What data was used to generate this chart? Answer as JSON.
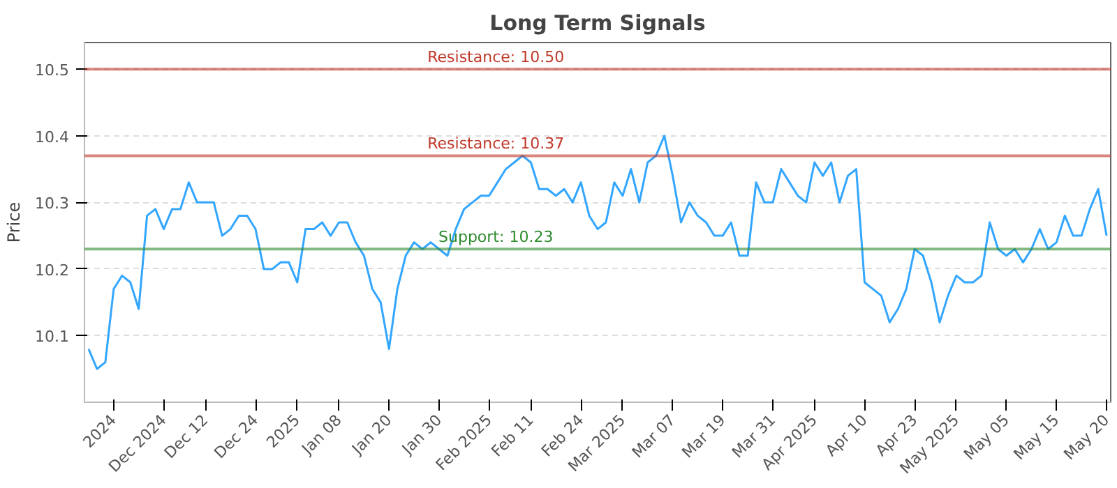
{
  "chart_data": {
    "type": "line",
    "title": "Long Term Signals",
    "ylabel": "Price",
    "categories": [
      null,
      null,
      null,
      "2024",
      null,
      null,
      null,
      null,
      null,
      "Dec 2024",
      null,
      null,
      null,
      null,
      "Dec 12",
      null,
      null,
      null,
      null,
      null,
      "Dec 24",
      null,
      null,
      null,
      null,
      "2025",
      null,
      null,
      null,
      null,
      "Jan 08",
      null,
      null,
      null,
      null,
      null,
      "Jan 20",
      null,
      null,
      null,
      null,
      null,
      "Jan 30",
      null,
      null,
      null,
      null,
      null,
      "Feb 2025",
      null,
      null,
      null,
      null,
      "Feb 11",
      null,
      null,
      null,
      null,
      null,
      "Feb 24",
      null,
      null,
      null,
      null,
      "Mar 2025",
      null,
      null,
      null,
      null,
      null,
      "Mar 07",
      null,
      null,
      null,
      null,
      null,
      "Mar 19",
      null,
      null,
      null,
      null,
      null,
      "Mar 31",
      null,
      null,
      null,
      null,
      "Apr 2025",
      null,
      null,
      null,
      null,
      null,
      "Apr 10",
      null,
      null,
      null,
      null,
      null,
      "Apr 23",
      null,
      null,
      null,
      null,
      "May 2025",
      null,
      null,
      null,
      null,
      null,
      "May 05",
      null,
      null,
      null,
      null,
      null,
      "May 15",
      null,
      null,
      null,
      null,
      null,
      "May 20"
    ],
    "series": [
      {
        "color": "#33a6ff",
        "values": [
          10.08,
          10.05,
          10.06,
          10.17,
          10.19,
          10.18,
          10.14,
          10.28,
          10.29,
          10.26,
          10.29,
          10.29,
          10.33,
          10.3,
          10.3,
          10.3,
          10.25,
          10.26,
          10.28,
          10.28,
          10.26,
          10.2,
          10.2,
          10.21,
          10.21,
          10.18,
          10.26,
          10.26,
          10.27,
          10.25,
          10.27,
          10.27,
          10.24,
          10.22,
          10.17,
          10.15,
          10.08,
          10.17,
          10.22,
          10.24,
          10.23,
          10.24,
          10.23,
          10.22,
          10.26,
          10.29,
          10.3,
          10.31,
          10.31,
          10.33,
          10.35,
          10.36,
          10.37,
          10.36,
          10.32,
          10.32,
          10.31,
          10.32,
          10.3,
          10.33,
          10.28,
          10.26,
          10.27,
          10.33,
          10.31,
          10.35,
          10.3,
          10.36,
          10.37,
          10.4,
          10.34,
          10.27,
          10.3,
          10.28,
          10.27,
          10.25,
          10.25,
          10.27,
          10.22,
          10.22,
          10.33,
          10.3,
          10.3,
          10.35,
          10.33,
          10.31,
          10.3,
          10.36,
          10.34,
          10.36,
          10.3,
          10.34,
          10.35,
          10.18,
          10.17,
          10.16,
          10.12,
          10.14,
          10.17,
          10.23,
          10.22,
          10.18,
          10.12,
          10.16,
          10.19,
          10.18,
          10.18,
          10.19,
          10.27,
          10.23,
          10.22,
          10.23,
          10.21,
          10.23,
          10.26,
          10.23,
          10.24,
          10.28,
          10.25,
          10.25,
          10.29,
          10.32,
          10.25
        ]
      }
    ],
    "ylim": [
      10.0,
      10.54
    ],
    "yticks": [
      10.1,
      10.2,
      10.3,
      10.4,
      10.5
    ],
    "grid": "y",
    "marker": "none",
    "line_style": "solid",
    "ref_lines": [
      {
        "axis": "y",
        "value": 10.5,
        "label": "Resistance: 10.50",
        "color": "#c0392b"
      },
      {
        "axis": "y",
        "value": 10.37,
        "label": "Resistance: 10.37",
        "color": "#c0392b"
      },
      {
        "axis": "y",
        "value": 10.23,
        "label": "Support: 10.23",
        "color": "#2e8b2e"
      }
    ]
  }
}
